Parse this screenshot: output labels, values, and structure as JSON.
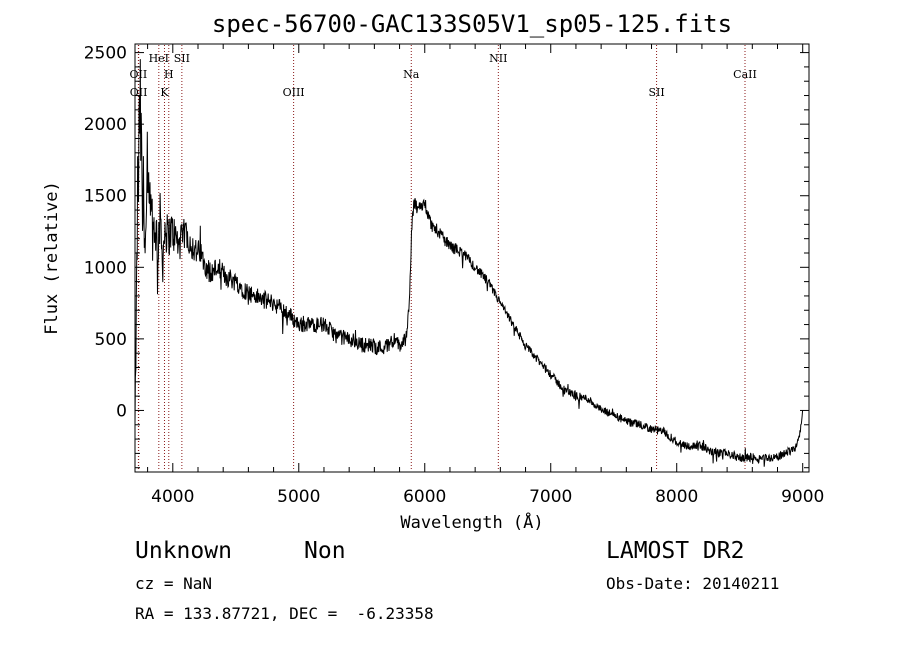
{
  "chart_data": {
    "type": "line",
    "title": "spec-56700-GAC133S05V1_sp05-125.fits",
    "xlabel": "Wavelength (Å)",
    "ylabel": "Flux (relative)",
    "xlim": [
      3700,
      9050
    ],
    "ylim": [
      -430,
      2560
    ],
    "x_ticks": [
      4000,
      5000,
      6000,
      7000,
      8000,
      9000
    ],
    "y_ticks": [
      0,
      500,
      1000,
      1500,
      2000,
      2500
    ],
    "grid": false,
    "line_color": "#000000",
    "marker_color": "#8b1a1a",
    "spectral_lines": [
      {
        "name": "OII",
        "wavelength": 3727,
        "tier": 2
      },
      {
        "name": "OII",
        "wavelength": 3729,
        "tier": 4
      },
      {
        "name": "HeI",
        "wavelength": 3889,
        "tier": 1
      },
      {
        "name": "H",
        "wavelength": 3968,
        "tier": 2
      },
      {
        "name": "K",
        "wavelength": 3934,
        "tier": 4
      },
      {
        "name": "SII",
        "wavelength": 4072,
        "tier": 1
      },
      {
        "name": "OIII",
        "wavelength": 4959,
        "tier": 4
      },
      {
        "name": "Na",
        "wavelength": 5893,
        "tier": 2
      },
      {
        "name": "NII",
        "wavelength": 6584,
        "tier": 1
      },
      {
        "name": "SII",
        "wavelength": 7840,
        "tier": 4
      },
      {
        "name": "CaII",
        "wavelength": 8542,
        "tier": 2
      }
    ],
    "series": [
      {
        "x": [
          3700,
          3710,
          3720,
          3730,
          3740,
          3750,
          3760,
          3770,
          3780,
          3790,
          3800,
          3820,
          3840,
          3860,
          3880,
          3900,
          3920,
          3940,
          3960,
          3980,
          4000,
          4050,
          4100,
          4150,
          4200,
          4250,
          4300,
          4350,
          4400,
          4500,
          4600,
          4700,
          4800,
          4850,
          4900,
          5000,
          5100,
          5200,
          5300,
          5400,
          5500,
          5600,
          5650,
          5700,
          5750,
          5800,
          5850,
          5880,
          5900,
          5920,
          5950,
          6000,
          6050,
          6100,
          6200,
          6300,
          6400,
          6500,
          6600,
          6700,
          6800,
          6900,
          7000,
          7100,
          7200,
          7300,
          7400,
          7500,
          7600,
          7700,
          7800,
          7900,
          8000,
          8100,
          8200,
          8300,
          8400,
          8500,
          8600,
          8700,
          8800,
          8850,
          8900,
          8950,
          8980,
          9000
        ],
        "y": [
          -100,
          600,
          1450,
          1700,
          2150,
          1800,
          1300,
          1600,
          1100,
          1300,
          1450,
          1400,
          1250,
          1300,
          1150,
          1350,
          1050,
          1300,
          1200,
          1250,
          1250,
          1150,
          1250,
          1150,
          1100,
          1050,
          950,
          1000,
          950,
          900,
          820,
          780,
          750,
          720,
          690,
          600,
          600,
          600,
          520,
          500,
          460,
          450,
          440,
          450,
          500,
          450,
          500,
          800,
          1350,
          1450,
          1400,
          1450,
          1300,
          1250,
          1150,
          1100,
          1000,
          900,
          750,
          600,
          450,
          350,
          250,
          150,
          100,
          80,
          0,
          -30,
          -80,
          -100,
          -130,
          -150,
          -220,
          -250,
          -250,
          -300,
          -300,
          -330,
          -330,
          -330,
          -330,
          -300,
          -280,
          -250,
          -150,
          0
        ],
        "noise": [
          30,
          200,
          400,
          450,
          400,
          380,
          350,
          300,
          280,
          260,
          250,
          220,
          200,
          200,
          190,
          180,
          170,
          170,
          160,
          150,
          140,
          120,
          110,
          100,
          100,
          90,
          90,
          80,
          80,
          70,
          70,
          65,
          60,
          60,
          60,
          55,
          55,
          55,
          55,
          55,
          55,
          55,
          55,
          55,
          55,
          55,
          55,
          60,
          60,
          55,
          50,
          50,
          45,
          45,
          40,
          40,
          35,
          35,
          30,
          30,
          30,
          30,
          30,
          30,
          30,
          30,
          30,
          30,
          30,
          30,
          30,
          30,
          30,
          30,
          30,
          30,
          30,
          30,
          30,
          30,
          30,
          30,
          30,
          30,
          20,
          10
        ]
      }
    ]
  },
  "info": {
    "object_class": "Unknown",
    "subclass": "Non",
    "survey": "LAMOST DR2",
    "redshift": "cz = NaN",
    "obs_date": "Obs-Date: 20140211",
    "coords": "RA = 133.87721, DEC =  -6.23358"
  }
}
